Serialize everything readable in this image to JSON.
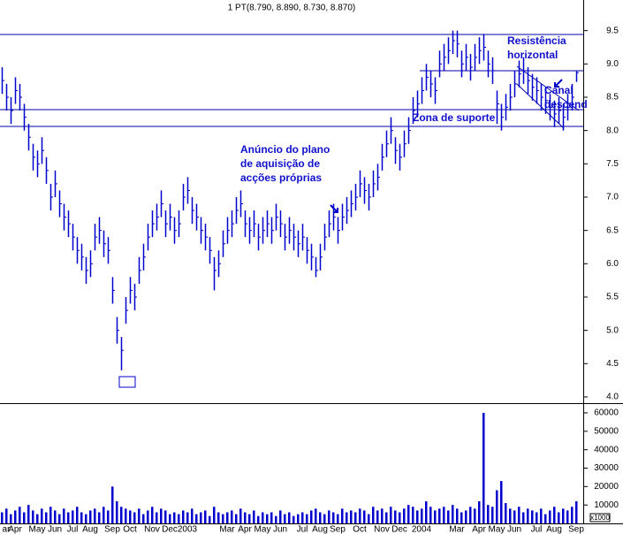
{
  "chart_data": [
    {
      "type": "ohlc",
      "title": "1 PT(8.790, 8.890, 8.730, 8.870)",
      "color": "#0000cc",
      "categories": [
        null,
        "ar",
        null,
        "Apr",
        null,
        null,
        null,
        null,
        "May",
        null,
        null,
        null,
        "Jun",
        null,
        null,
        null,
        "Jul",
        null,
        null,
        null,
        "Aug",
        null,
        null,
        null,
        null,
        "Sep",
        null,
        null,
        null,
        "Oct",
        null,
        null,
        null,
        null,
        "Nov",
        null,
        null,
        null,
        "Dec",
        null,
        null,
        null,
        "2003",
        null,
        null,
        null,
        null,
        null,
        null,
        null,
        null,
        "Mar",
        null,
        null,
        null,
        "Apr",
        null,
        null,
        null,
        "May",
        null,
        null,
        null,
        "Jun",
        null,
        null,
        null,
        null,
        "Jul",
        null,
        null,
        null,
        "Aug",
        null,
        null,
        null,
        "Sep",
        null,
        null,
        null,
        null,
        "Oct",
        null,
        null,
        null,
        null,
        "Nov",
        null,
        null,
        null,
        "Dec",
        null,
        null,
        null,
        null,
        "2004",
        null,
        null,
        null,
        null,
        null,
        null,
        null,
        "Mar",
        null,
        null,
        null,
        null,
        "Apr",
        null,
        null,
        null,
        "May",
        null,
        null,
        null,
        "Jun",
        null,
        null,
        null,
        null,
        "Jul",
        null,
        null,
        null,
        "Aug",
        null,
        null,
        null,
        null,
        "Sep"
      ],
      "high": [
        8.95,
        8.7,
        8.5,
        8.8,
        8.7,
        8.4,
        8.1,
        7.8,
        7.7,
        7.9,
        7.6,
        7.2,
        7.4,
        7.1,
        6.9,
        6.8,
        6.6,
        6.4,
        6.3,
        6.1,
        6.2,
        6.6,
        6.7,
        6.5,
        6.4,
        5.8,
        5.2,
        4.9,
        5.5,
        5.8,
        5.7,
        6.1,
        6.3,
        6.6,
        6.8,
        6.9,
        7.1,
        6.8,
        6.9,
        6.7,
        6.8,
        7.2,
        7.3,
        7.0,
        6.9,
        6.7,
        6.6,
        6.4,
        6.1,
        6.2,
        6.5,
        6.7,
        6.8,
        7.0,
        7.1,
        6.8,
        6.7,
        6.8,
        6.6,
        6.7,
        6.8,
        6.7,
        6.9,
        6.8,
        6.6,
        6.7,
        6.6,
        6.5,
        6.6,
        6.4,
        6.3,
        6.1,
        6.3,
        6.6,
        6.8,
        6.9,
        6.7,
        6.9,
        7.0,
        7.1,
        7.2,
        7.4,
        7.3,
        7.2,
        7.4,
        7.5,
        7.8,
        8.0,
        8.2,
        7.9,
        7.8,
        8.0,
        8.2,
        8.5,
        8.6,
        8.8,
        9.0,
        8.9,
        8.8,
        9.2,
        9.3,
        9.4,
        9.5,
        9.5,
        9.2,
        9.3,
        9.15,
        9.3,
        9.4,
        9.45,
        9.2,
        9.1,
        8.6,
        8.4,
        8.55,
        8.7,
        8.9,
        9.05,
        9.1,
        8.95,
        8.85,
        8.8,
        8.7,
        8.65,
        8.55,
        8.45,
        8.5,
        8.4,
        8.55,
        8.7,
        8.89
      ],
      "low": [
        8.55,
        8.3,
        8.1,
        8.4,
        8.3,
        8.0,
        7.7,
        7.4,
        7.3,
        7.5,
        7.2,
        6.8,
        7.0,
        6.7,
        6.5,
        6.4,
        6.2,
        6.0,
        5.9,
        5.7,
        5.8,
        6.2,
        6.3,
        6.1,
        6.0,
        5.4,
        4.8,
        4.4,
        5.1,
        5.4,
        5.3,
        5.7,
        5.9,
        6.2,
        6.4,
        6.5,
        6.7,
        6.4,
        6.5,
        6.3,
        6.4,
        6.8,
        6.9,
        6.6,
        6.5,
        6.3,
        6.2,
        6.0,
        5.6,
        5.8,
        6.1,
        6.3,
        6.4,
        6.6,
        6.7,
        6.4,
        6.3,
        6.4,
        6.2,
        6.3,
        6.4,
        6.3,
        6.5,
        6.4,
        6.2,
        6.3,
        6.2,
        6.1,
        6.2,
        6.0,
        5.9,
        5.8,
        5.9,
        6.2,
        6.4,
        6.5,
        6.3,
        6.5,
        6.6,
        6.7,
        6.8,
        7.0,
        6.9,
        6.8,
        7.0,
        7.1,
        7.4,
        7.6,
        7.8,
        7.5,
        7.4,
        7.6,
        7.8,
        8.1,
        8.2,
        8.4,
        8.6,
        8.5,
        8.4,
        8.8,
        8.9,
        9.0,
        9.15,
        9.1,
        8.8,
        8.9,
        8.75,
        8.9,
        9.0,
        9.05,
        8.8,
        8.7,
        8.1,
        8.0,
        8.15,
        8.3,
        8.5,
        8.65,
        8.7,
        8.55,
        8.45,
        8.4,
        8.3,
        8.25,
        8.15,
        8.05,
        8.1,
        8.0,
        8.15,
        8.3,
        8.73
      ],
      "values": [
        8.75,
        8.5,
        8.3,
        8.6,
        8.5,
        8.2,
        7.9,
        7.6,
        7.5,
        7.7,
        7.4,
        7.0,
        7.2,
        6.9,
        6.7,
        6.6,
        6.4,
        6.2,
        6.1,
        5.9,
        6.0,
        6.4,
        6.5,
        6.3,
        6.2,
        5.6,
        5.0,
        4.7,
        5.3,
        5.6,
        5.5,
        5.9,
        6.1,
        6.4,
        6.6,
        6.7,
        6.9,
        6.6,
        6.7,
        6.5,
        6.6,
        7.0,
        7.1,
        6.8,
        6.7,
        6.5,
        6.4,
        6.2,
        5.9,
        6.0,
        6.3,
        6.5,
        6.6,
        6.8,
        6.9,
        6.6,
        6.5,
        6.6,
        6.4,
        6.5,
        6.6,
        6.5,
        6.7,
        6.6,
        6.4,
        6.5,
        6.4,
        6.3,
        6.4,
        6.2,
        6.1,
        5.9,
        6.1,
        6.4,
        6.6,
        6.7,
        6.5,
        6.7,
        6.8,
        6.9,
        7.0,
        7.2,
        7.1,
        7.0,
        7.2,
        7.3,
        7.6,
        7.8,
        8.0,
        7.7,
        7.6,
        7.8,
        8.0,
        8.3,
        8.4,
        8.6,
        8.8,
        8.7,
        8.6,
        9.0,
        9.1,
        9.2,
        9.35,
        9.3,
        9.0,
        9.1,
        8.95,
        9.1,
        9.2,
        9.25,
        9.0,
        8.9,
        8.4,
        8.2,
        8.35,
        8.5,
        8.7,
        8.85,
        8.9,
        8.75,
        8.65,
        8.6,
        8.5,
        8.45,
        8.35,
        8.25,
        8.3,
        8.2,
        8.35,
        8.5,
        8.87
      ],
      "ylim": [
        3.92,
        9.96
      ],
      "yticks": [
        {
          "value": 4,
          "label": "4.0"
        },
        4.5,
        {
          "value": 5,
          "label": "5.0"
        },
        5.5,
        {
          "value": 6,
          "label": "6.0"
        },
        6.5,
        {
          "value": 7,
          "label": "7.0"
        },
        7.5,
        {
          "value": 8,
          "label": "8.0"
        },
        8.5,
        {
          "value": 9,
          "label": "9.0"
        },
        9.5
      ],
      "annotations": [
        {
          "lines": [
            "Anúncio do plano",
            "de aquisição de",
            "acções próprias"
          ]
        },
        {
          "lines": [
            "Resistência",
            "horizontal"
          ]
        },
        {
          "lines": [
            "Zona de suporte"
          ]
        },
        {
          "lines": [
            "Canal",
            "descend"
          ]
        }
      ]
    },
    {
      "type": "bar",
      "color": "#0000cc",
      "unit_label": "x1000",
      "values": [
        6000,
        8000,
        5000,
        7000,
        9000,
        6000,
        10000,
        7000,
        5000,
        8000,
        6000,
        9000,
        7000,
        5000,
        8000,
        6000,
        7000,
        9000,
        6000,
        5000,
        7000,
        8000,
        6000,
        9000,
        7000,
        20000,
        12000,
        9000,
        8000,
        7000,
        6000,
        8000,
        5000,
        7000,
        9000,
        6000,
        8000,
        7000,
        5000,
        6000,
        5000,
        7000,
        6000,
        8000,
        5000,
        6000,
        7000,
        4000,
        9000,
        6000,
        5000,
        6000,
        7000,
        5000,
        8000,
        6000,
        5000,
        7000,
        4000,
        6000,
        5000,
        6000,
        4000,
        7000,
        5000,
        6000,
        4000,
        5000,
        6000,
        5000,
        7000,
        8000,
        6000,
        5000,
        7000,
        6000,
        5000,
        8000,
        6000,
        7000,
        6000,
        8000,
        7000,
        5000,
        9000,
        7000,
        8000,
        6000,
        9000,
        7000,
        6000,
        8000,
        10000,
        9000,
        7000,
        8000,
        12000,
        9000,
        7000,
        8000,
        9000,
        7000,
        10000,
        8000,
        6000,
        7000,
        9000,
        8000,
        12000,
        60000,
        10000,
        9000,
        18000,
        23000,
        11000,
        8000,
        7000,
        9000,
        6000,
        8000,
        7000,
        6000,
        8000,
        5000,
        7000,
        9000,
        6000,
        8000,
        7000,
        9000,
        12000
      ],
      "ylim": [
        0,
        63360
      ],
      "yticks": [
        10000,
        20000,
        30000,
        40000,
        50000,
        60000
      ]
    }
  ]
}
